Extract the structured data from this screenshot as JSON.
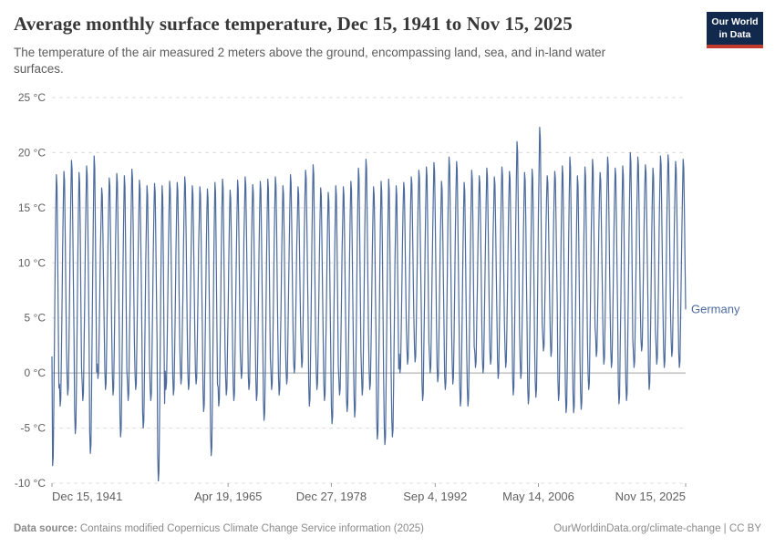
{
  "header": {
    "title": "Average monthly surface temperature, Dec 15, 1941 to Nov 15, 2025",
    "subtitle": "The temperature of the air measured 2 meters above the ground, encompassing land, sea, and in-land water surfaces.",
    "logo": {
      "line1": "Our World",
      "line2": "in Data",
      "bg_color": "#12294e",
      "accent_color": "#c0392b"
    }
  },
  "footer": {
    "source_label": "Data source:",
    "source_text": " Contains modified Copernicus Climate Change Service information (2025)",
    "link_text": "OurWorldinData.org/climate-change | CC BY"
  },
  "chart_data": {
    "type": "line",
    "title": "Average monthly surface temperature, Dec 15, 1941 to Nov 15, 2025",
    "series_name": "Germany",
    "ylabel": "",
    "ylim": [
      -10,
      25
    ],
    "grid": true,
    "legend_position": "right-of-line-end",
    "colors": {
      "line": "#4c6a9c",
      "grid": "#dddddd",
      "zero_line": "#a3a3a3",
      "axis_text": "#606060",
      "tick": "#999999"
    },
    "yticks": [
      {
        "value": 25,
        "label": "25 °C"
      },
      {
        "value": 20,
        "label": "20 °C"
      },
      {
        "value": 15,
        "label": "15 °C"
      },
      {
        "value": 10,
        "label": "10 °C"
      },
      {
        "value": 5,
        "label": "5 °C"
      },
      {
        "value": 0,
        "label": "0 °C"
      },
      {
        "value": -5,
        "label": "-5 °C"
      },
      {
        "value": -10,
        "label": "-10 °C"
      }
    ],
    "xticks": [
      {
        "label": "Dec 15, 1941",
        "month_index": 0,
        "align": "start"
      },
      {
        "label": "Apr 19, 1965",
        "month_index": 280,
        "align": "middle"
      },
      {
        "label": "Dec 27, 1978",
        "month_index": 444,
        "align": "middle"
      },
      {
        "label": "Sep 4, 1992",
        "month_index": 609,
        "align": "middle"
      },
      {
        "label": "May 14, 2006",
        "month_index": 773,
        "align": "middle"
      },
      {
        "label": "Nov 15, 2025",
        "month_index": 1007,
        "align": "end"
      }
    ],
    "months_total": 1008,
    "start_label": "Dec 1941",
    "start_value": 1.5,
    "year_start": 1942,
    "year_end": 2025,
    "monthly_shape": [
      0,
      0.03,
      0.22,
      0.43,
      0.67,
      0.85,
      1,
      0.96,
      0.75,
      0.5,
      0.26,
      0.08
    ],
    "winter_min": [
      -8.4,
      -3,
      -2,
      -5.5,
      -2.5,
      -7.3,
      -0.5,
      -1.5,
      -2,
      -5.8,
      -2.5,
      -1.5,
      -5,
      -2.5,
      -9.8,
      -1.5,
      -2,
      -1,
      -1.5,
      -1,
      -3.5,
      -7.5,
      -3,
      -2,
      -2.5,
      -0.5,
      -1.5,
      -2.5,
      -4.3,
      -1.5,
      -2,
      -1,
      0,
      0.5,
      -3,
      -1.5,
      -2.5,
      -4.6,
      -2,
      -3.5,
      -4,
      -2,
      -1.5,
      -6,
      -6.5,
      -5.8,
      0,
      0.8,
      1,
      -2.5,
      0,
      -0.8,
      -1.5,
      -1,
      -3,
      -3,
      0.5,
      0,
      0.8,
      -0.5,
      0.5,
      -2,
      -0.5,
      -2.8,
      -2.2,
      2,
      1.5,
      -2.5,
      -3.6,
      -3.6,
      -3.3,
      -1.5,
      1.5,
      0.8,
      0.5,
      -2.8,
      -2.5,
      0.5,
      2,
      -1.5,
      0.8,
      0.5,
      1.5,
      0.5
    ],
    "summer_max": [
      18,
      18.3,
      19.3,
      18.2,
      18.8,
      19.7,
      16.8,
      17.7,
      18.1,
      17.9,
      18.5,
      17.5,
      17,
      17.2,
      17,
      17.4,
      17.3,
      17.8,
      17,
      16.9,
      16.7,
      17.3,
      17.6,
      16.6,
      17.5,
      17.8,
      17.1,
      17.4,
      17.6,
      17.8,
      17,
      18,
      16.9,
      18.4,
      18.9,
      16.8,
      16.4,
      17,
      16.9,
      17.4,
      18.6,
      19.4,
      16.9,
      17.4,
      17.6,
      17,
      17.3,
      17.8,
      18.4,
      18.7,
      19.1,
      17.4,
      19.6,
      19.2,
      17.3,
      18.4,
      17.9,
      18.6,
      17.8,
      18.7,
      18.3,
      21,
      18.2,
      18.5,
      22.3,
      17.9,
      18.3,
      18.8,
      19.6,
      17.9,
      18.7,
      19.4,
      18.2,
      19.6,
      18.6,
      18.8,
      20,
      19.6,
      18.9,
      18.6,
      19.7,
      19.8,
      19.2,
      19.4
    ]
  }
}
